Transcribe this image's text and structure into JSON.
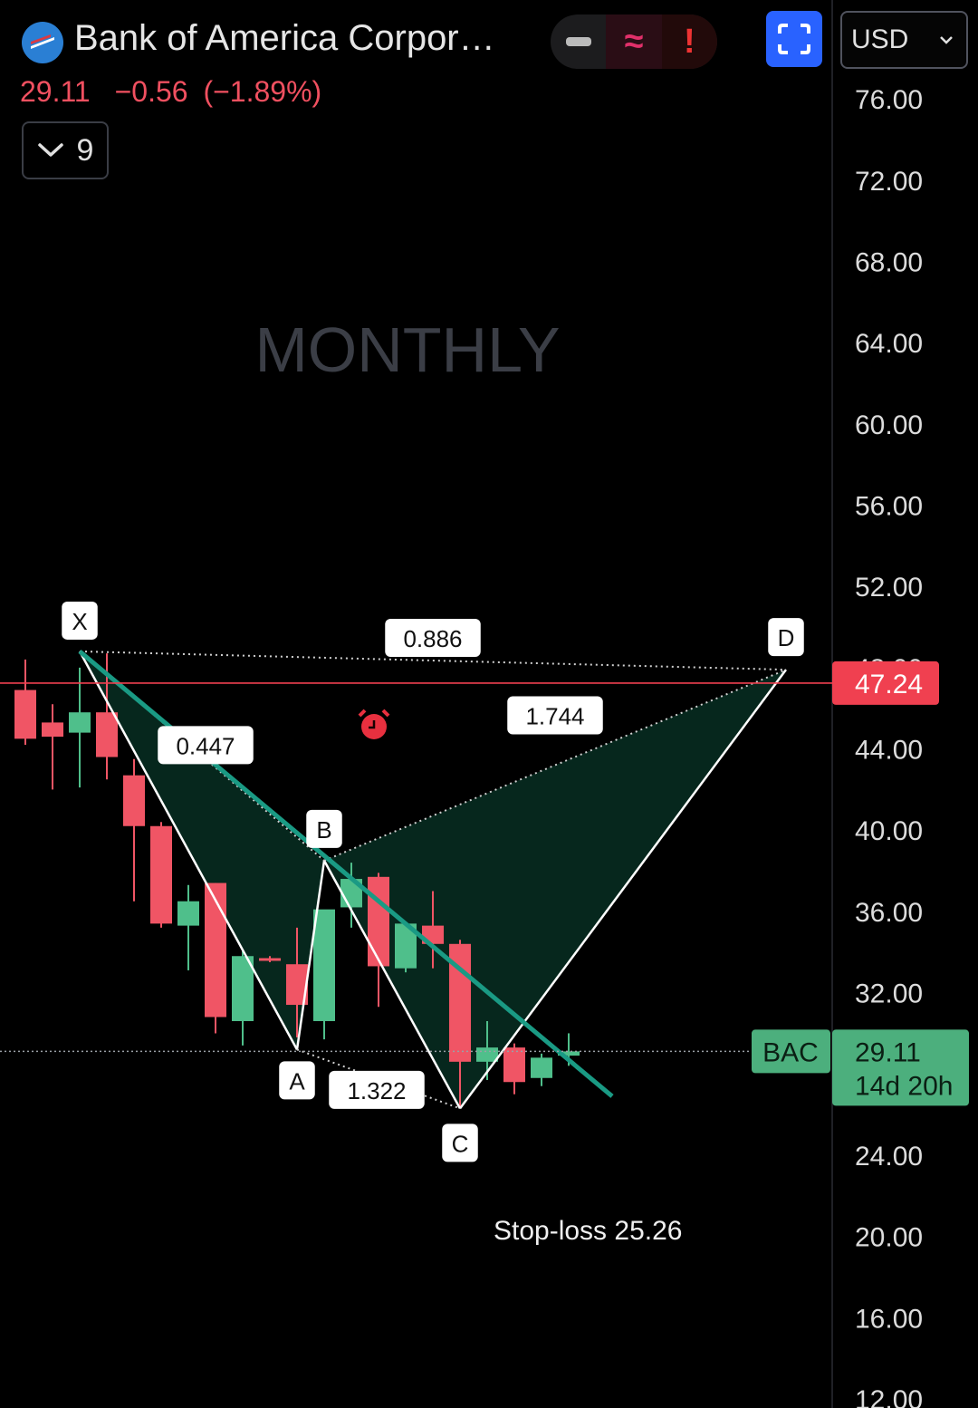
{
  "header": {
    "title": "Bank of America Corpor…",
    "last": "29.11",
    "change": "−0.56",
    "change_pct": "(−1.89%)",
    "collapse_count": "9",
    "currency": "USD"
  },
  "colors": {
    "up": "#4fbf8b",
    "down": "#f05565",
    "pattern_fill": "#06291f",
    "trendline": "#1a9a84",
    "alert_line": "#f04050",
    "price_tag": "#4caf7d"
  },
  "watermark": "MONTHLY",
  "annotation": "Stop-loss 25.26",
  "chart_data": {
    "type": "candlestick",
    "symbol": "BAC",
    "interval": "MONTHLY",
    "y_axis": {
      "min": 12,
      "max": 78,
      "ticks": [
        "76.00",
        "72.00",
        "68.00",
        "64.00",
        "60.00",
        "56.00",
        "52.00",
        "48.00",
        "44.00",
        "40.00",
        "36.00",
        "32.00",
        "28.00",
        "24.00",
        "20.00",
        "16.00",
        "12.00"
      ]
    },
    "candles": [
      {
        "o": 46.9,
        "h": 48.4,
        "l": 44.2,
        "c": 44.5
      },
      {
        "o": 45.3,
        "h": 46.2,
        "l": 42.0,
        "c": 44.6
      },
      {
        "o": 44.8,
        "h": 48.0,
        "l": 42.1,
        "c": 45.8
      },
      {
        "o": 45.8,
        "h": 48.7,
        "l": 42.5,
        "c": 43.6
      },
      {
        "o": 42.7,
        "h": 43.5,
        "l": 36.5,
        "c": 40.2
      },
      {
        "o": 40.2,
        "h": 40.4,
        "l": 35.2,
        "c": 35.4
      },
      {
        "o": 35.3,
        "h": 37.3,
        "l": 33.1,
        "c": 36.5
      },
      {
        "o": 37.4,
        "h": 37.4,
        "l": 30.0,
        "c": 30.8
      },
      {
        "o": 30.6,
        "h": 34.1,
        "l": 29.4,
        "c": 33.8
      },
      {
        "o": 33.7,
        "h": 33.8,
        "l": 33.5,
        "c": 33.6
      },
      {
        "o": 33.4,
        "h": 35.2,
        "l": 29.8,
        "c": 31.4
      },
      {
        "o": 30.6,
        "h": 35.5,
        "l": 29.7,
        "c": 36.1
      },
      {
        "o": 36.2,
        "h": 38.4,
        "l": 35.2,
        "c": 37.6
      },
      {
        "o": 37.7,
        "h": 37.9,
        "l": 31.3,
        "c": 33.3
      },
      {
        "o": 33.2,
        "h": 35.5,
        "l": 33.0,
        "c": 35.4
      },
      {
        "o": 35.3,
        "h": 37.0,
        "l": 33.2,
        "c": 34.4
      },
      {
        "o": 34.4,
        "h": 34.6,
        "l": 26.3,
        "c": 28.6
      },
      {
        "o": 28.6,
        "h": 30.6,
        "l": 27.7,
        "c": 29.3
      },
      {
        "o": 29.3,
        "h": 29.5,
        "l": 27.0,
        "c": 27.6
      },
      {
        "o": 27.8,
        "h": 29.0,
        "l": 27.4,
        "c": 28.8
      },
      {
        "o": 28.9,
        "h": 30.0,
        "l": 28.4,
        "c": 29.11
      }
    ],
    "pattern": {
      "points": [
        {
          "label": "X",
          "x": 2,
          "y": 48.8
        },
        {
          "label": "A",
          "x": 10,
          "y": 29.2
        },
        {
          "label": "B",
          "x": 11,
          "y": 38.5
        },
        {
          "label": "C",
          "x": 16,
          "y": 26.3
        },
        {
          "label": "D",
          "x": 28,
          "y": 47.9
        }
      ],
      "ratios": [
        {
          "text": "0.447",
          "between": "XB"
        },
        {
          "text": "1.322",
          "between": "AC"
        },
        {
          "text": "1.744",
          "between": "BD"
        },
        {
          "text": "0.886",
          "between": "XD"
        }
      ]
    },
    "trendline": {
      "from": {
        "x": 2,
        "y": 48.8
      },
      "to": {
        "x": 21.6,
        "y": 26.9
      }
    },
    "alert": {
      "price": 47.24,
      "label": "47.24"
    },
    "last_price": {
      "value": 29.11,
      "label": "29.11",
      "countdown": "14d 20h",
      "symbol": "BAC"
    }
  }
}
